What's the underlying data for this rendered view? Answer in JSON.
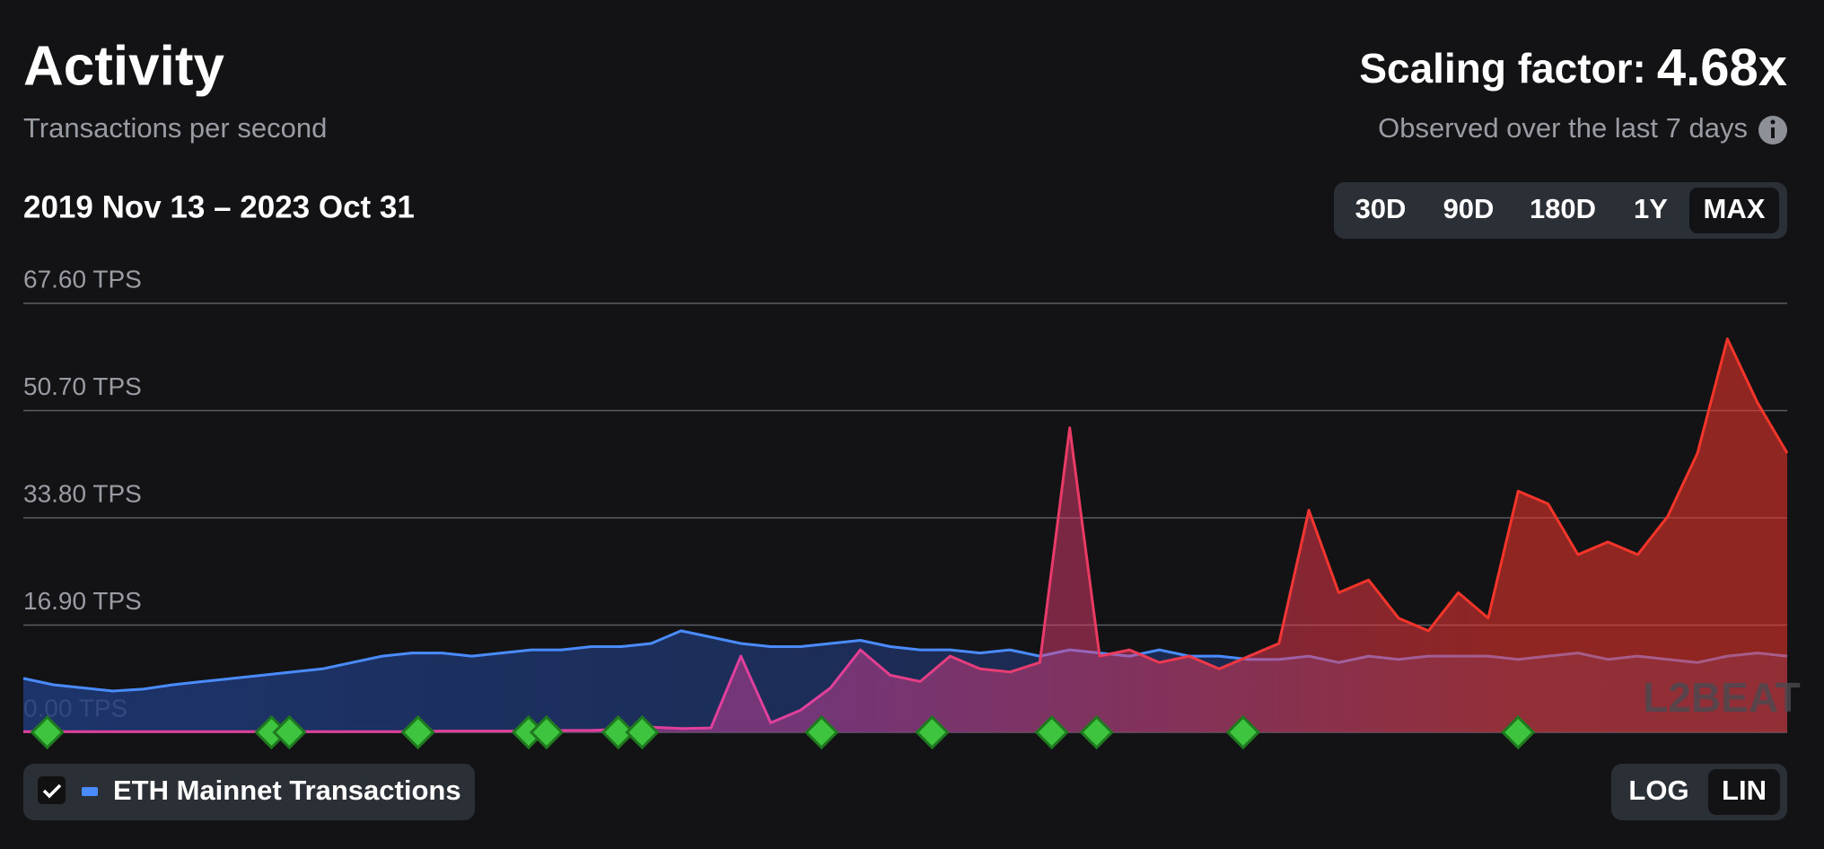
{
  "title": "Activity",
  "subtitle": "Transactions per second",
  "scaling_label": "Scaling factor:",
  "scaling_value": "4.68x",
  "observed_note": "Observed over the last 7 days",
  "date_range": "2019 Nov 13 – 2023 Oct 31",
  "range_buttons": [
    "30D",
    "90D",
    "180D",
    "1Y",
    "MAX"
  ],
  "selected_range": 4,
  "scale_buttons": [
    "LOG",
    "LIN"
  ],
  "selected_scale": 1,
  "watermark": "L2BEAT",
  "chart_data": {
    "type": "area",
    "ylim": [
      0,
      67.6
    ],
    "yticks": [
      {
        "value": 0,
        "label": "0.00 TPS"
      },
      {
        "value": 16.9,
        "label": "16.90 TPS"
      },
      {
        "value": 33.8,
        "label": "33.80 TPS"
      },
      {
        "value": 50.7,
        "label": "50.70 TPS"
      },
      {
        "value": 67.6,
        "label": "67.60 TPS"
      }
    ],
    "grid": true,
    "series": [
      {
        "name": "ETH Mainnet Transactions",
        "color": "#4a8cff",
        "values": [
          8.5,
          7.5,
          7,
          6.5,
          6.8,
          7.5,
          8,
          8.5,
          9,
          9.5,
          10,
          11,
          12,
          12.5,
          12.5,
          12,
          12.5,
          13,
          13,
          13.5,
          13.5,
          14,
          16,
          15,
          14,
          13.5,
          13.5,
          14,
          14.5,
          13.5,
          13,
          13,
          12.5,
          13,
          12,
          13,
          12.5,
          12,
          13,
          12,
          12,
          11.5,
          11.5,
          12,
          11,
          12,
          11.5,
          12,
          12,
          12,
          11.5,
          12,
          12.5,
          11.5,
          12,
          11.5,
          11,
          12,
          12.5,
          12
        ]
      },
      {
        "color": [
          "#e0409c",
          "#f5352a"
        ],
        "values": [
          0.1,
          0.1,
          0.1,
          0.1,
          0.1,
          0.1,
          0.1,
          0.1,
          0.1,
          0.1,
          0.1,
          0.1,
          0.1,
          0.1,
          0.2,
          0.2,
          0.2,
          0.2,
          0.3,
          0.3,
          0.5,
          0.8,
          0.6,
          0.7,
          12,
          1.5,
          3.5,
          7,
          13,
          9,
          8,
          12,
          10,
          9.5,
          11,
          48,
          12,
          13,
          11,
          12,
          10,
          12,
          14,
          35,
          22,
          24,
          18,
          16,
          22,
          18,
          38,
          36,
          28,
          30,
          28,
          34,
          44,
          62,
          52,
          44
        ]
      }
    ],
    "milestones": [
      0.8,
      8.3,
      8.9,
      13.2,
      16.9,
      17.5,
      19.9,
      20.7,
      26.7,
      30.4,
      34.4,
      35.9,
      40.8,
      50.0
    ]
  }
}
